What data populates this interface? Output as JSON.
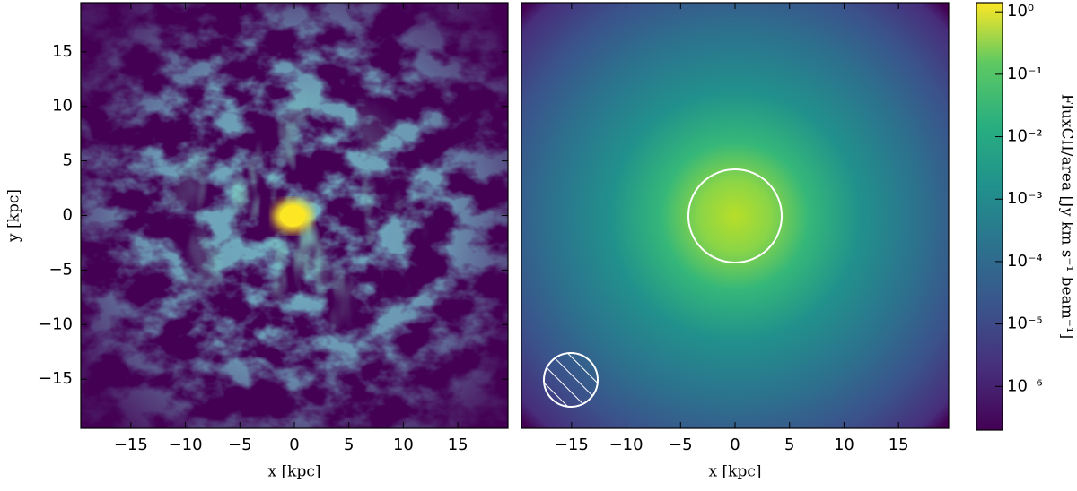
{
  "chart_data": [
    {
      "type": "heatmap",
      "x_label": "x [kpc]",
      "y_label": "y [kpc]",
      "xlim": [
        -19.6,
        19.6
      ],
      "ylim": [
        -19.5,
        19.5
      ],
      "xticks": [
        {
          "value": -15,
          "label": "−15"
        },
        {
          "value": -10,
          "label": "−10"
        },
        {
          "value": -5,
          "label": "−5"
        },
        0,
        5,
        10,
        15
      ],
      "yticks": [
        {
          "value": -15,
          "label": "−15"
        },
        {
          "value": -10,
          "label": "−10"
        },
        {
          "value": -5,
          "label": "−5"
        },
        0,
        5,
        10,
        15
      ]
    },
    {
      "type": "heatmap",
      "x_label": "x [kpc]",
      "xlim": [
        -19.6,
        19.6
      ],
      "ylim": [
        -19.5,
        19.5
      ],
      "xticks": [
        {
          "value": -15,
          "label": "−15"
        },
        {
          "value": -10,
          "label": "−10"
        },
        {
          "value": -5,
          "label": "−5"
        },
        0,
        5,
        10,
        15
      ]
    },
    {
      "type": "colorbar",
      "label": "FluxCII/area [Jy km s⁻¹ beam⁻¹]",
      "scale": "log",
      "lim": [
        2e-07,
        1.4
      ],
      "ticks": [
        {
          "value": 1e-06,
          "label": "10⁻⁶"
        },
        {
          "value": 1e-05,
          "label": "10⁻⁵"
        },
        {
          "value": 0.0001,
          "label": "10⁻⁴"
        },
        {
          "value": 0.001,
          "label": "10⁻³"
        },
        {
          "value": 0.01,
          "label": "10⁻²"
        },
        {
          "value": 0.1,
          "label": "10⁻¹"
        },
        {
          "value": 1,
          "label": "10⁰"
        }
      ]
    }
  ]
}
